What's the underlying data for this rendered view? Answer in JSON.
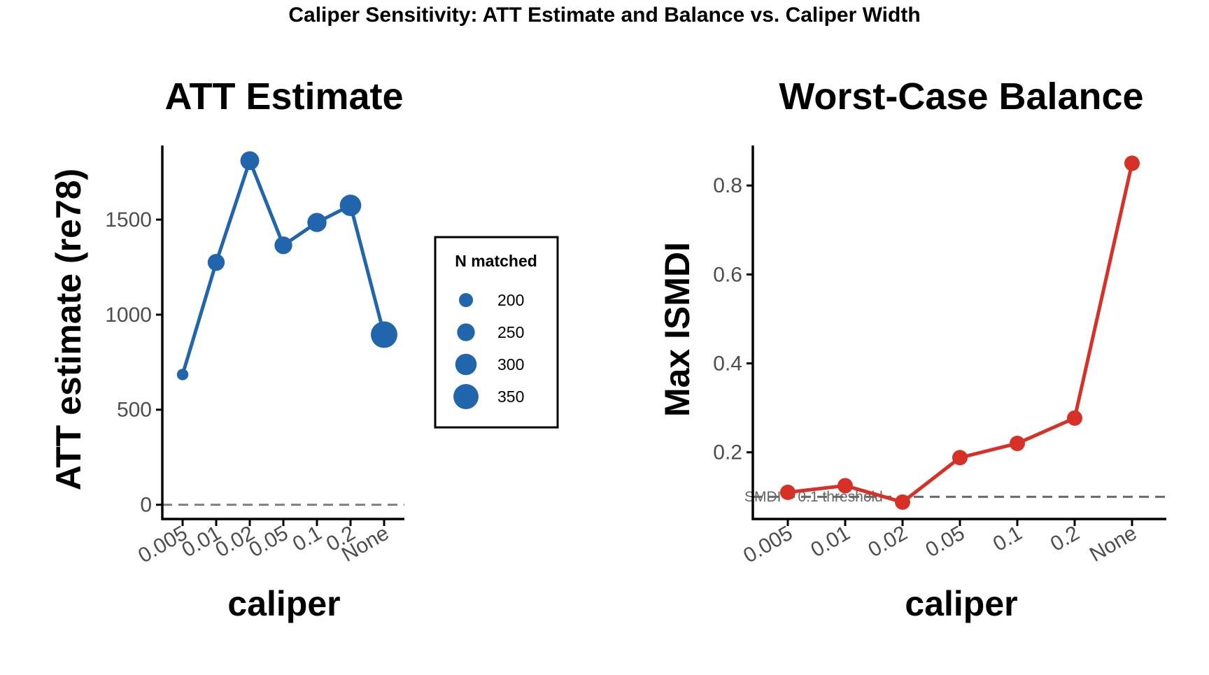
{
  "figure_title": "Caliper Sensitivity: ATT Estimate and Balance vs. Caliper Width",
  "chart_data": [
    {
      "type": "line",
      "title": "ATT Estimate",
      "xlabel": "caliper",
      "ylabel": "ATT estimate (re78)",
      "categories": [
        "0.005",
        "0.01",
        "0.02",
        "0.05",
        "0.1",
        "0.2",
        "None"
      ],
      "series": [
        {
          "values": [
            685,
            1275,
            1810,
            1365,
            1485,
            1575,
            895
          ],
          "n_matched": [
            165,
            240,
            265,
            250,
            270,
            300,
            370
          ],
          "color": "#2166ac"
        }
      ],
      "ylim": [
        -75,
        1890
      ],
      "yticks": [
        0,
        500,
        1000,
        1500
      ],
      "yticklabels": [
        "0",
        "500",
        "1000",
        "1500"
      ],
      "reference_line": {
        "y": 0,
        "style": "dashed",
        "color": "#808080"
      },
      "grid": false,
      "legend": {
        "title": "N matched",
        "entries": [
          {
            "label": "200",
            "value": 200
          },
          {
            "label": "250",
            "value": 250
          },
          {
            "label": "300",
            "value": 300
          },
          {
            "label": "350",
            "value": 350
          }
        ],
        "position": "right"
      }
    },
    {
      "type": "line",
      "title": "Worst-Case Balance",
      "xlabel": "caliper",
      "ylabel": "Max ISMDI",
      "categories": [
        "0.005",
        "0.01",
        "0.02",
        "0.05",
        "0.1",
        "0.2",
        "None"
      ],
      "series": [
        {
          "values": [
            0.11,
            0.125,
            0.088,
            0.188,
            0.22,
            0.277,
            0.85
          ],
          "color": "#d73027"
        }
      ],
      "ylim": [
        0.05,
        0.89
      ],
      "yticks": [
        0.2,
        0.4,
        0.6,
        0.8
      ],
      "yticklabels": [
        "0.2",
        "0.4",
        "0.6",
        "0.8"
      ],
      "reference_line": {
        "y": 0.1,
        "style": "dashed",
        "color": "#666666",
        "label": "SMDI = 0.1 threshold"
      },
      "grid": false
    }
  ]
}
